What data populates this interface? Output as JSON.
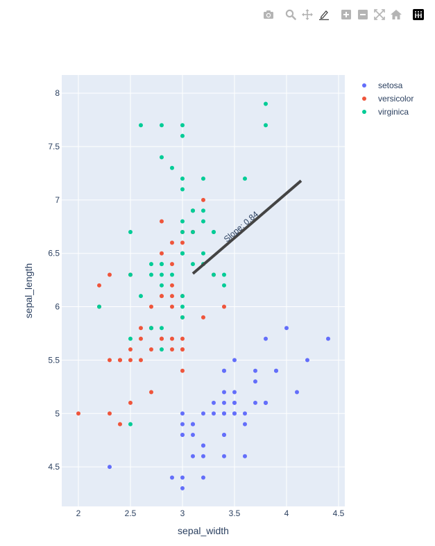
{
  "toolbar": {
    "buttons": [
      {
        "name": "camera-icon",
        "group": 0
      },
      {
        "name": "zoom-icon",
        "group": 1
      },
      {
        "name": "pan-icon",
        "group": 1
      },
      {
        "name": "draw-line-icon",
        "group": 1
      },
      {
        "name": "zoom-in-icon",
        "group": 2
      },
      {
        "name": "zoom-out-icon",
        "group": 2
      },
      {
        "name": "autoscale-icon",
        "group": 2
      },
      {
        "name": "home-icon",
        "group": 2
      },
      {
        "name": "plotly-logo-icon",
        "group": 3
      }
    ]
  },
  "colors": {
    "plot_bg": "#e5ecf6",
    "grid": "#ffffff",
    "text": "#2a3f5f",
    "setosa": "#636efa",
    "versicolor": "#EF553B",
    "virginica": "#00cc96",
    "line": "#444444",
    "icon": "#b4b4b4"
  },
  "chart_data": {
    "type": "scatter",
    "xlabel": "sepal_width",
    "ylabel": "sepal_length",
    "xlim": [
      1.84,
      4.56
    ],
    "ylim": [
      4.13,
      8.17
    ],
    "xticks": [
      2,
      2.5,
      3,
      3.5,
      4,
      4.5
    ],
    "xtick_labels": [
      "2",
      "2.5",
      "3",
      "3.5",
      "4",
      "4.5"
    ],
    "yticks": [
      4.5,
      5,
      5.5,
      6,
      6.5,
      7,
      7.5,
      8
    ],
    "ytick_labels": [
      "4.5",
      "5",
      "5.5",
      "6",
      "6.5",
      "7",
      "7.5",
      "8"
    ],
    "grid": true,
    "legend_position": "top-right",
    "series": [
      {
        "name": "setosa",
        "color": "#636efa",
        "points": [
          [
            3.5,
            5.1
          ],
          [
            3.0,
            4.9
          ],
          [
            3.2,
            4.7
          ],
          [
            3.1,
            4.6
          ],
          [
            3.6,
            5.0
          ],
          [
            3.9,
            5.4
          ],
          [
            3.4,
            4.6
          ],
          [
            3.4,
            5.0
          ],
          [
            2.9,
            4.4
          ],
          [
            3.1,
            4.9
          ],
          [
            3.7,
            5.4
          ],
          [
            3.4,
            4.8
          ],
          [
            3.0,
            4.8
          ],
          [
            3.0,
            4.3
          ],
          [
            4.0,
            5.8
          ],
          [
            4.4,
            5.7
          ],
          [
            3.9,
            5.4
          ],
          [
            3.5,
            5.1
          ],
          [
            3.8,
            5.7
          ],
          [
            3.8,
            5.1
          ],
          [
            3.4,
            5.4
          ],
          [
            3.7,
            5.1
          ],
          [
            3.6,
            4.6
          ],
          [
            3.3,
            5.1
          ],
          [
            3.4,
            4.8
          ],
          [
            3.0,
            5.0
          ],
          [
            3.4,
            5.0
          ],
          [
            3.5,
            5.2
          ],
          [
            3.4,
            5.2
          ],
          [
            3.2,
            4.7
          ],
          [
            3.1,
            4.8
          ],
          [
            3.4,
            5.4
          ],
          [
            4.1,
            5.2
          ],
          [
            4.2,
            5.5
          ],
          [
            3.1,
            4.9
          ],
          [
            3.2,
            5.0
          ],
          [
            3.5,
            5.5
          ],
          [
            3.6,
            4.9
          ],
          [
            3.0,
            4.4
          ],
          [
            3.4,
            5.1
          ],
          [
            3.5,
            5.0
          ],
          [
            2.3,
            4.5
          ],
          [
            3.2,
            4.4
          ],
          [
            3.5,
            5.0
          ],
          [
            3.8,
            5.1
          ],
          [
            3.0,
            4.8
          ],
          [
            3.8,
            5.1
          ],
          [
            3.2,
            4.6
          ],
          [
            3.7,
            5.3
          ],
          [
            3.3,
            5.0
          ]
        ]
      },
      {
        "name": "versicolor",
        "color": "#EF553B",
        "points": [
          [
            3.2,
            7.0
          ],
          [
            3.2,
            6.4
          ],
          [
            3.1,
            6.9
          ],
          [
            2.3,
            5.5
          ],
          [
            2.8,
            6.5
          ],
          [
            2.8,
            5.7
          ],
          [
            3.3,
            6.3
          ],
          [
            2.4,
            4.9
          ],
          [
            2.9,
            6.6
          ],
          [
            2.7,
            5.2
          ],
          [
            2.0,
            5.0
          ],
          [
            3.0,
            5.9
          ],
          [
            2.2,
            6.0
          ],
          [
            2.9,
            6.1
          ],
          [
            2.9,
            5.6
          ],
          [
            3.1,
            6.7
          ],
          [
            3.0,
            5.6
          ],
          [
            2.7,
            5.8
          ],
          [
            2.2,
            6.2
          ],
          [
            2.5,
            5.6
          ],
          [
            3.2,
            5.9
          ],
          [
            2.8,
            6.1
          ],
          [
            2.5,
            6.3
          ],
          [
            2.8,
            6.1
          ],
          [
            2.9,
            6.4
          ],
          [
            3.0,
            6.6
          ],
          [
            2.8,
            6.8
          ],
          [
            3.0,
            6.7
          ],
          [
            2.9,
            6.0
          ],
          [
            2.6,
            5.7
          ],
          [
            2.4,
            5.5
          ],
          [
            2.4,
            5.5
          ],
          [
            2.7,
            5.8
          ],
          [
            2.7,
            6.0
          ],
          [
            3.0,
            5.4
          ],
          [
            3.4,
            6.0
          ],
          [
            3.1,
            6.7
          ],
          [
            2.3,
            6.3
          ],
          [
            3.0,
            5.6
          ],
          [
            2.5,
            5.5
          ],
          [
            2.6,
            5.5
          ],
          [
            3.0,
            6.1
          ],
          [
            2.6,
            5.8
          ],
          [
            2.3,
            5.0
          ],
          [
            2.7,
            5.6
          ],
          [
            3.0,
            5.7
          ],
          [
            2.9,
            5.7
          ],
          [
            2.9,
            6.2
          ],
          [
            2.5,
            5.1
          ],
          [
            2.8,
            5.7
          ]
        ]
      },
      {
        "name": "virginica",
        "color": "#00cc96",
        "points": [
          [
            3.3,
            6.3
          ],
          [
            2.7,
            5.8
          ],
          [
            3.0,
            7.1
          ],
          [
            2.9,
            6.3
          ],
          [
            3.0,
            6.5
          ],
          [
            3.0,
            7.6
          ],
          [
            2.5,
            4.9
          ],
          [
            2.9,
            7.3
          ],
          [
            2.5,
            6.7
          ],
          [
            3.6,
            7.2
          ],
          [
            3.2,
            6.5
          ],
          [
            2.7,
            6.4
          ],
          [
            3.0,
            6.8
          ],
          [
            2.5,
            5.7
          ],
          [
            2.8,
            5.8
          ],
          [
            3.2,
            6.4
          ],
          [
            3.0,
            6.5
          ],
          [
            3.8,
            7.7
          ],
          [
            2.6,
            7.7
          ],
          [
            2.2,
            6.0
          ],
          [
            3.2,
            6.9
          ],
          [
            2.8,
            5.6
          ],
          [
            2.8,
            7.7
          ],
          [
            2.7,
            6.3
          ],
          [
            3.3,
            6.7
          ],
          [
            3.2,
            7.2
          ],
          [
            2.8,
            6.2
          ],
          [
            3.0,
            6.1
          ],
          [
            2.8,
            6.4
          ],
          [
            3.0,
            7.2
          ],
          [
            2.8,
            7.4
          ],
          [
            3.8,
            7.9
          ],
          [
            2.8,
            6.4
          ],
          [
            2.8,
            6.3
          ],
          [
            2.6,
            6.1
          ],
          [
            3.0,
            7.7
          ],
          [
            3.4,
            6.3
          ],
          [
            3.1,
            6.4
          ],
          [
            3.0,
            6.0
          ],
          [
            3.1,
            6.9
          ],
          [
            3.1,
            6.7
          ],
          [
            3.1,
            6.9
          ],
          [
            2.7,
            5.8
          ],
          [
            3.2,
            6.8
          ],
          [
            3.3,
            6.7
          ],
          [
            3.0,
            6.7
          ],
          [
            2.5,
            6.3
          ],
          [
            3.0,
            6.5
          ],
          [
            3.4,
            6.2
          ],
          [
            3.0,
            5.9
          ]
        ]
      }
    ],
    "line": {
      "x": [
        3.1,
        4.14
      ],
      "y": [
        6.31,
        7.18
      ],
      "color": "#444444"
    },
    "annotation": {
      "text": "Slope: 0.84",
      "x": 3.58,
      "y": 6.73
    }
  }
}
